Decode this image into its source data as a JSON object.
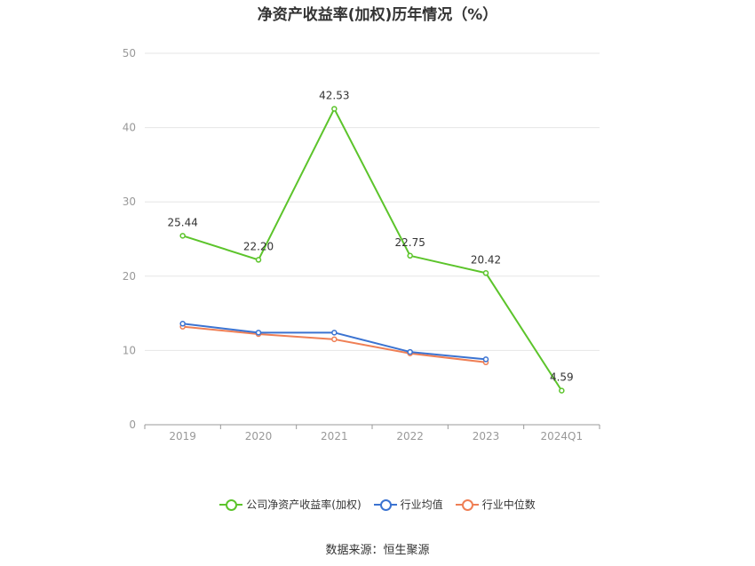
{
  "chart_data": {
    "type": "line",
    "title": "净资产收益率(加权)历年情况（%）",
    "categories": [
      "2019",
      "2020",
      "2021",
      "2022",
      "2023",
      "2024Q1"
    ],
    "ylim": [
      0,
      50
    ],
    "yticks": [
      0,
      10,
      20,
      30,
      40,
      50
    ],
    "grid": true,
    "legend_position": "bottom",
    "series": [
      {
        "name": "公司净资产收益率(加权)",
        "values": [
          25.44,
          22.2,
          42.53,
          22.75,
          20.42,
          4.59
        ],
        "labels": [
          "25.44",
          "22.20",
          "42.53",
          "22.75",
          "20.42",
          "4.59"
        ],
        "color": "#5cc42b"
      },
      {
        "name": "行业均值",
        "values": [
          13.6,
          12.4,
          12.4,
          9.8,
          8.8,
          null
        ],
        "color": "#3b73d1"
      },
      {
        "name": "行业中位数",
        "values": [
          13.2,
          12.2,
          11.5,
          9.6,
          8.4,
          null
        ],
        "color": "#ef7f55"
      }
    ]
  },
  "source": "数据来源：恒生聚源",
  "colors": {
    "grid": "#e6e6e6",
    "axis": "#999999",
    "tick_text": "#999999",
    "label_text": "#333333"
  }
}
